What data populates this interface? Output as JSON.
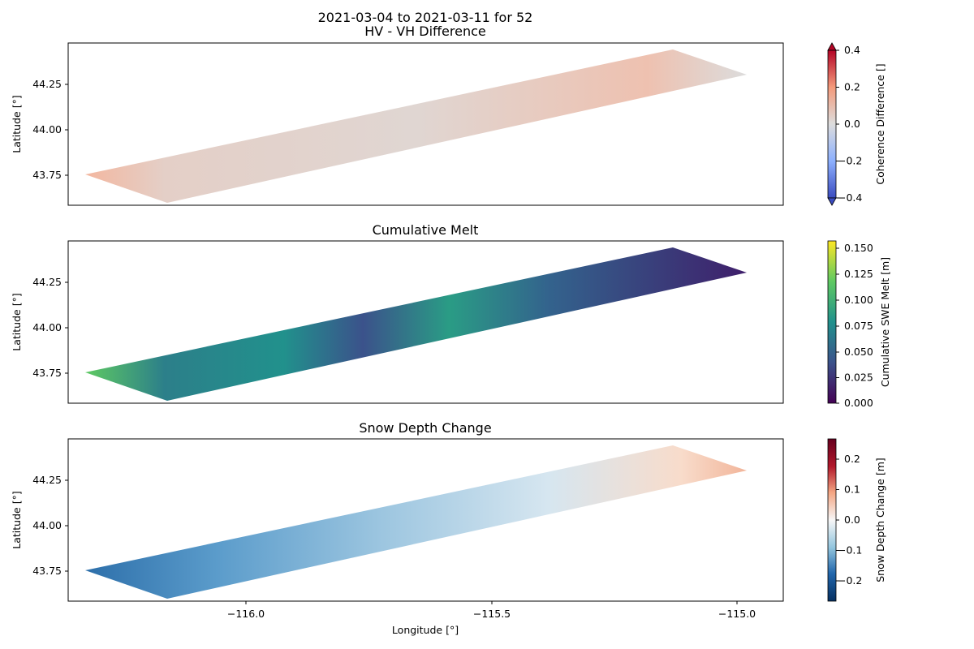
{
  "figure": {
    "suptitle_line1": "2021-03-04 to 2021-03-11 for 52",
    "xlabel": "Longitude [°]",
    "x_tick_labels": [
      "−116.0",
      "−115.5",
      "−115.0"
    ]
  },
  "colors": {
    "coherence": [
      "#3b4cc0",
      "#8db0fe",
      "#dddddd",
      "#f49a7b",
      "#b40426"
    ],
    "viridis": [
      "#440154",
      "#3b528b",
      "#21918c",
      "#5ec962",
      "#fde725"
    ],
    "rdbu": [
      "#053061",
      "#2166ac",
      "#92c5de",
      "#f7f7f7",
      "#f4a582",
      "#b2182b",
      "#67001f"
    ]
  },
  "chart_data": [
    {
      "type": "heatmap",
      "title": "HV - VH Difference",
      "ylabel": "Latitude [°]",
      "xlim": [
        -116.36,
        -114.91
      ],
      "ylim": [
        43.58,
        44.46
      ],
      "y_ticks": [
        43.75,
        44.0,
        44.25
      ],
      "y_tick_labels": [
        "43.75",
        "44.00",
        "44.25"
      ],
      "swath_polygon_lonlat": [
        [
          -116.32,
          43.75
        ],
        [
          -115.09,
          44.45
        ],
        [
          -114.94,
          44.3
        ],
        [
          -116.11,
          43.6
        ]
      ],
      "colorbar": {
        "label": "Coherence Difference []",
        "range": [
          -0.4,
          0.4
        ],
        "extend": "both",
        "ticks": [
          0.4,
          0.2,
          0.0,
          -0.2,
          -0.4
        ],
        "tick_labels": [
          "0.4",
          "0.2",
          "0.0",
          "−0.2",
          "−0.4"
        ]
      },
      "grid": false
    },
    {
      "type": "heatmap",
      "title": "Cumulative Melt",
      "ylabel": "Latitude [°]",
      "xlim": [
        -116.36,
        -114.91
      ],
      "ylim": [
        43.58,
        44.46
      ],
      "y_ticks": [
        43.75,
        44.0,
        44.25
      ],
      "y_tick_labels": [
        "43.75",
        "44.00",
        "44.25"
      ],
      "swath_polygon_lonlat": [
        [
          -116.32,
          43.75
        ],
        [
          -115.09,
          44.45
        ],
        [
          -114.94,
          44.3
        ],
        [
          -116.11,
          43.6
        ]
      ],
      "colorbar": {
        "label": "Cumulative SWE Melt [m]",
        "range": [
          0.0,
          0.155
        ],
        "ticks": [
          0.15,
          0.125,
          0.1,
          0.075,
          0.05,
          0.025,
          0.0
        ],
        "tick_labels": [
          "0.150",
          "0.125",
          "0.100",
          "0.075",
          "0.050",
          "0.025",
          "0.000"
        ]
      },
      "grid": false
    },
    {
      "type": "heatmap",
      "title": "Snow Depth Change",
      "ylabel": "Latitude [°]",
      "xlabel": "Longitude [°]",
      "xlim": [
        -116.36,
        -114.91
      ],
      "ylim": [
        43.58,
        44.46
      ],
      "x_ticks": [
        -116.0,
        -115.5,
        -115.0
      ],
      "y_ticks": [
        43.75,
        44.0,
        44.25
      ],
      "y_tick_labels": [
        "43.75",
        "44.00",
        "44.25"
      ],
      "swath_polygon_lonlat": [
        [
          -116.32,
          43.75
        ],
        [
          -115.09,
          44.45
        ],
        [
          -114.94,
          44.3
        ],
        [
          -116.11,
          43.6
        ]
      ],
      "colorbar": {
        "label": "Snow Depth Change [m]",
        "range": [
          -0.265,
          0.265
        ],
        "ticks": [
          0.2,
          0.1,
          0.0,
          -0.1,
          -0.2
        ],
        "tick_labels": [
          "0.2",
          "0.1",
          "0.0",
          "−0.1",
          "−0.2"
        ]
      },
      "grid": false
    }
  ]
}
